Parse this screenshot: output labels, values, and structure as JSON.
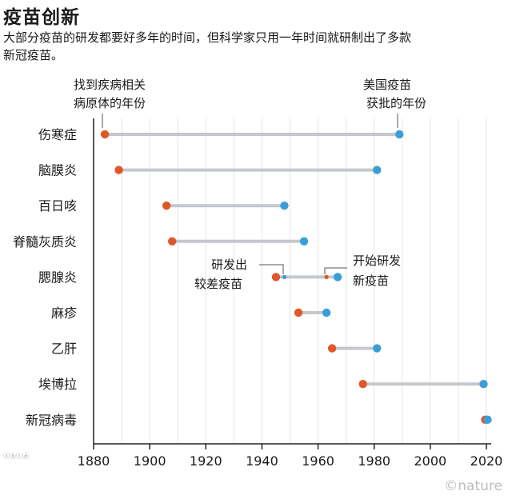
{
  "title": "疫苗创新",
  "subtitle": "大部分疫苗的研发都要好多年的时间，但科学家只用一年时间就研制出了多款新冠疫苗。",
  "legend": {
    "discovery_label_1": "找到疾病相关",
    "discovery_label_2": "病原体的年份",
    "approval_label_1": "美国疫苗",
    "approval_label_2": "获批的年份"
  },
  "annotations": {
    "poor_vaccine_1": "研发出",
    "poor_vaccine_2": "较差疫苗",
    "new_dev_1": "开始研发",
    "new_dev_2": "新疫苗"
  },
  "credit": "©nature",
  "watermark": "ⓐⓑⓒⓓ",
  "colors": {
    "discovery": "#e0562a",
    "approval": "#3a9fd6",
    "bar": "#c4c8cc",
    "grid": "#e4e4e4"
  },
  "chart_data": {
    "type": "range",
    "title": "疫苗创新",
    "xlim": [
      1880,
      2020
    ],
    "x_ticks": [
      1880,
      1900,
      1920,
      1940,
      1960,
      1980,
      2000,
      2020
    ],
    "grid": true,
    "series": [
      {
        "name": "找到疾病相关病原体的年份",
        "key": "discovery"
      },
      {
        "name": "美国疫苗获批的年份",
        "key": "approval"
      }
    ],
    "categories": [
      "伤寒症",
      "脑膜炎",
      "百日咳",
      "脊髓灰质炎",
      "腮腺炎",
      "麻疹",
      "乙肝",
      "埃博拉",
      "新冠病毒"
    ],
    "rows": [
      {
        "disease": "伤寒症",
        "discovery": 1884,
        "approval": 1989
      },
      {
        "disease": "脑膜炎",
        "discovery": 1889,
        "approval": 1981
      },
      {
        "disease": "百日咳",
        "discovery": 1906,
        "approval": 1948
      },
      {
        "disease": "脊髓灰质炎",
        "discovery": 1908,
        "approval": 1955
      },
      {
        "disease": "腮腺炎",
        "discovery": 1945,
        "approval": 1967,
        "poor_vaccine": 1948,
        "new_development": 1963
      },
      {
        "disease": "麻疹",
        "discovery": 1953,
        "approval": 1963
      },
      {
        "disease": "乙肝",
        "discovery": 1965,
        "approval": 1981
      },
      {
        "disease": "埃博拉",
        "discovery": 1976,
        "approval": 2019
      },
      {
        "disease": "新冠病毒",
        "discovery": 2020,
        "approval": 2020
      }
    ]
  }
}
